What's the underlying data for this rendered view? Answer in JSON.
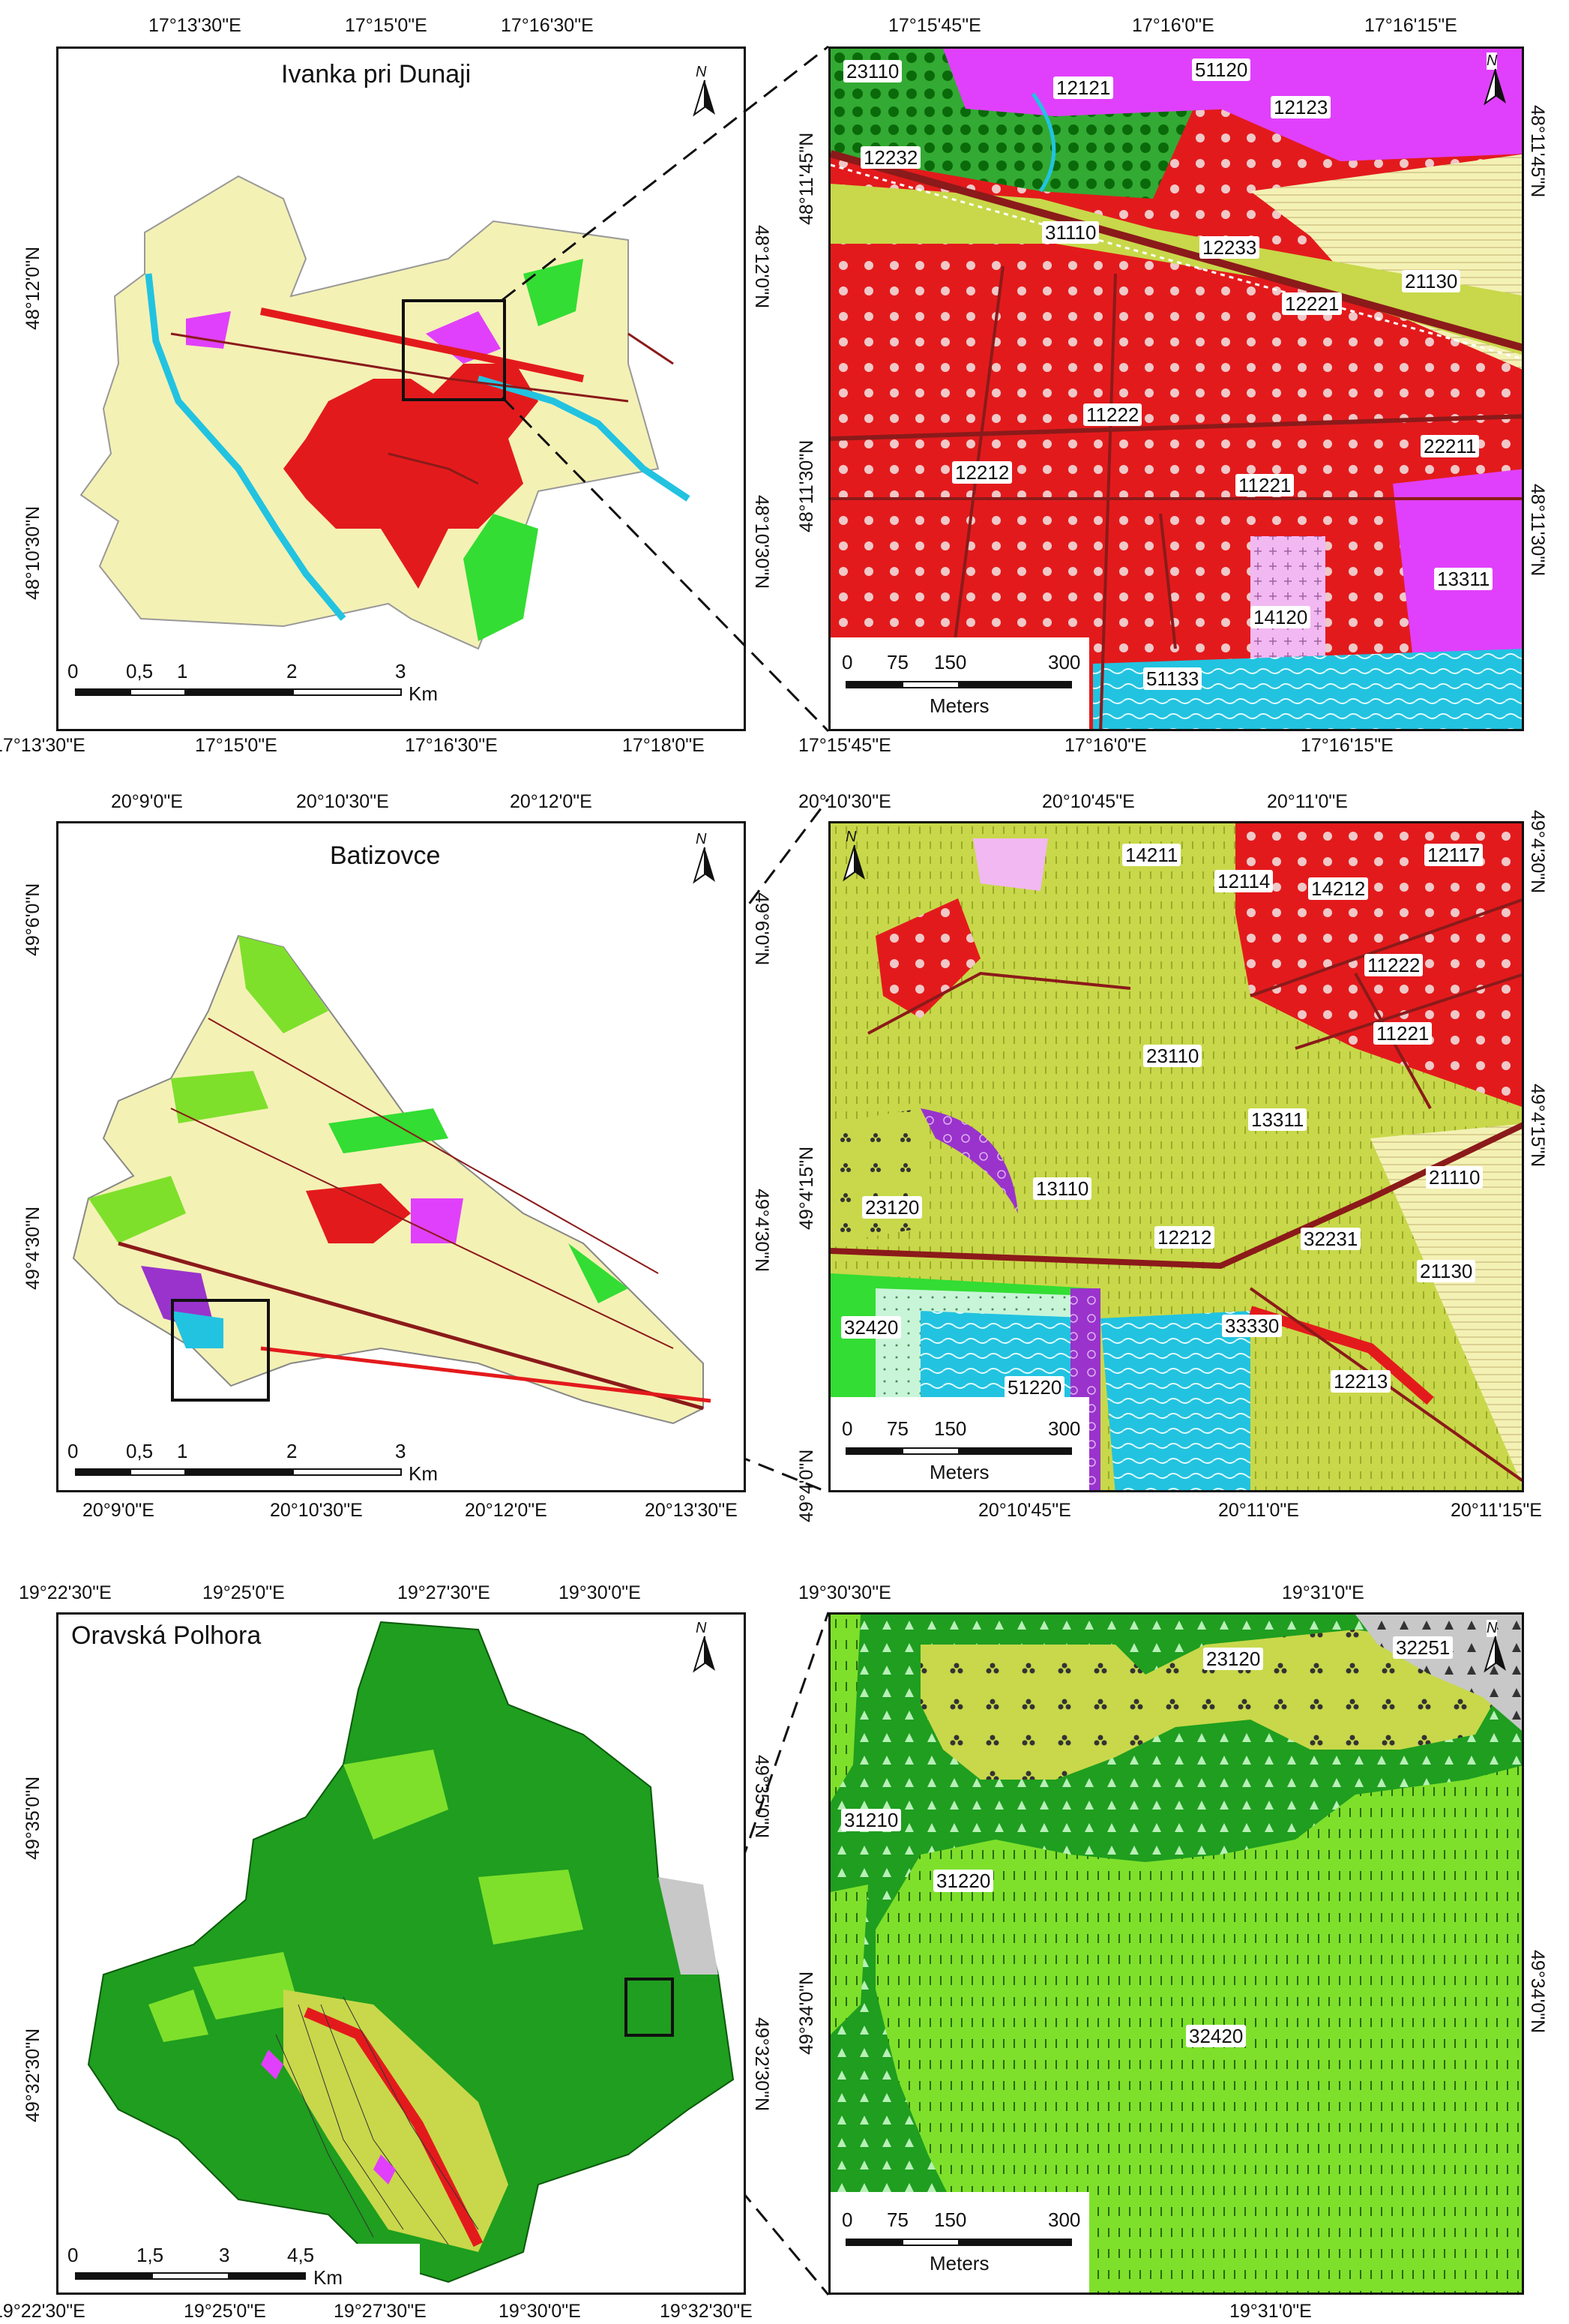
{
  "panels": [
    {
      "overview": {
        "title": "Ivanka pri Dunaji",
        "top_ticks": [
          "17°13'30\"E",
          "17°15'0\"E",
          "17°16'30\"E"
        ],
        "bottom_ticks": [
          "17°13'30\"E",
          "17°15'0\"E",
          "17°16'30\"E",
          "17°18'0\"E"
        ],
        "left_ticks": [
          "48°12'0\"N",
          "48°10'30\"N"
        ],
        "right_ticks": [
          "48°12'0\"N",
          "48°10'30\"N"
        ],
        "scale": {
          "ticks": [
            "0",
            "0,5",
            "1",
            "2",
            "3"
          ],
          "unit": "Km"
        },
        "north": "N"
      },
      "detail": {
        "top_ticks": [
          "17°15'45\"E",
          "17°16'0\"E",
          "17°16'15\"E"
        ],
        "bottom_ticks": [
          "17°15'45\"E",
          "17°16'0\"E",
          "17°16'15\"E"
        ],
        "left_ticks": [
          "48°11'45\"N",
          "48°11'30\"N"
        ],
        "right_ticks": [
          "48°11'45\"N",
          "48°11'30\"N"
        ],
        "scale": {
          "ticks": [
            "0",
            "75",
            "150",
            "300"
          ],
          "unit": "Meters"
        },
        "north": "N",
        "labels": [
          "23110",
          "51120",
          "12121",
          "12123",
          "12232",
          "31110",
          "12233",
          "21130",
          "12221",
          "11222",
          "22211",
          "12212",
          "11221",
          "13311",
          "14120",
          "51133"
        ]
      }
    },
    {
      "overview": {
        "title": "Batizovce",
        "top_ticks": [
          "20°9'0\"E",
          "20°10'30\"E",
          "20°12'0\"E"
        ],
        "bottom_ticks": [
          "20°9'0\"E",
          "20°10'30\"E",
          "20°12'0\"E",
          "20°13'30\"E"
        ],
        "left_ticks": [
          "49°6'0\"N",
          "49°4'30\"N"
        ],
        "right_ticks": [
          "49°6'0\"N",
          "49°4'30\"N"
        ],
        "scale": {
          "ticks": [
            "0",
            "0,5",
            "1",
            "2",
            "3"
          ],
          "unit": "Km"
        },
        "north": "N"
      },
      "detail": {
        "top_ticks": [
          "20°10'30\"E",
          "20°10'45\"E",
          "20°11'0\"E"
        ],
        "bottom_ticks": [
          "20°10'45\"E",
          "20°11'0\"E",
          "20°11'15\"E"
        ],
        "left_ticks": [
          "49°4'15\"N",
          "49°4'0\"N"
        ],
        "right_ticks": [
          "49°4'30\"N",
          "49°4'15\"N"
        ],
        "scale": {
          "ticks": [
            "0",
            "75",
            "150",
            "300"
          ],
          "unit": "Meters"
        },
        "north": "N",
        "labels": [
          "14211",
          "12114",
          "14212",
          "12117",
          "11222",
          "11221",
          "23110",
          "13311",
          "21110",
          "13110",
          "23120",
          "12212",
          "32231",
          "21130",
          "33330",
          "32420",
          "51220",
          "12213"
        ]
      }
    },
    {
      "overview": {
        "title": "Oravská Polhora",
        "top_ticks": [
          "19°22'30\"E",
          "19°25'0\"E",
          "19°27'30\"E",
          "19°30'0\"E"
        ],
        "bottom_ticks": [
          "19°22'30\"E",
          "19°25'0\"E",
          "19°27'30\"E",
          "19°30'0\"E",
          "19°32'30\"E"
        ],
        "left_ticks": [
          "49°35'0\"N",
          "49°32'30\"N"
        ],
        "right_ticks": [
          "49°35'0\"N",
          "49°32'30\"N"
        ],
        "scale": {
          "ticks": [
            "0",
            "1,5",
            "3",
            "4,5"
          ],
          "unit": "Km"
        },
        "north": "N"
      },
      "detail": {
        "top_ticks": [
          "19°30'30\"E",
          "19°31'0\"E"
        ],
        "bottom_ticks": [
          "19°31'0\"E"
        ],
        "left_ticks": [
          "49°34'0\"N"
        ],
        "right_ticks": [
          "49°34'0\"N"
        ],
        "scale": {
          "ticks": [
            "0",
            "75",
            "150",
            "300"
          ],
          "unit": "Meters"
        },
        "north": "N",
        "labels": [
          "23120",
          "32251",
          "31210",
          "31220",
          "32420"
        ]
      }
    }
  ],
  "colors": {
    "arable": "#f4f1b5",
    "urban": "#e31a1c",
    "commercial": "#e040fb",
    "grassland": "#c8d84a",
    "forest_dark": "#1f9e1f",
    "forest_light": "#7ee02b",
    "water": "#22c3e0",
    "road": "#8b1a1a",
    "light_green": "#33dd33",
    "grey": "#c8c8c8",
    "pink_light": "#f2b8f2"
  }
}
